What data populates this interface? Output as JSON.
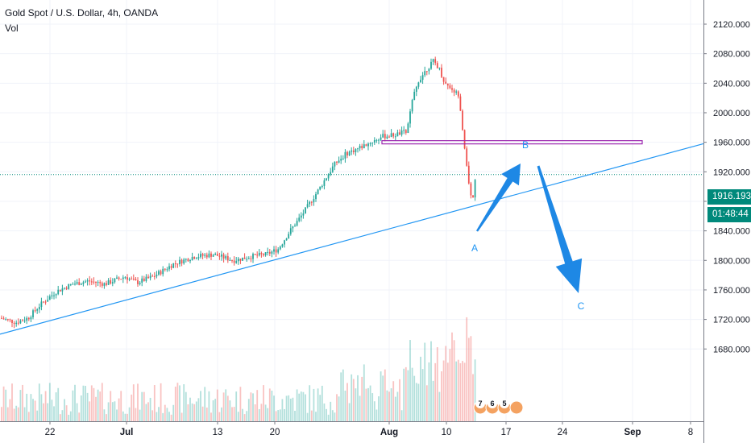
{
  "header": {
    "symbol": "Gold Spot / U.S. Dollar, 4h, OANDA",
    "indicator": "Vol"
  },
  "price_axis": {
    "ticks": [
      "2120.000",
      "2080.000",
      "2040.000",
      "2000.000",
      "1960.000",
      "1920.000",
      "1880.000",
      "1840.000",
      "1800.000",
      "1760.000",
      "1720.000",
      "1680.000"
    ],
    "current_price": "1916.193",
    "countdown": "01:48:44",
    "current_color": "#00897b"
  },
  "time_axis": {
    "ticks": [
      "22",
      "Jul",
      "13",
      "20",
      "Aug",
      "10",
      "17",
      "24",
      "Sep",
      "8"
    ]
  },
  "events": [
    "7",
    "6",
    "5"
  ],
  "annotations": {
    "wave_labels": [
      "A",
      "B",
      "C"
    ],
    "line_color": "#2196f3",
    "resistance_color": "#9c27b0"
  },
  "chart_data": {
    "type": "candlestick",
    "title": "Gold Spot / U.S. Dollar, 4h, OANDA",
    "ylim": [
      1660,
      2140
    ],
    "x_ticks": [
      "22",
      "Jul",
      "13",
      "20",
      "Aug",
      "10",
      "17",
      "24",
      "Sep",
      "8"
    ],
    "close_path": [
      [
        "Jun 16",
        1722
      ],
      [
        "Jun 18",
        1718
      ],
      [
        "Jun 22",
        1740
      ],
      [
        "Jun 24",
        1765
      ],
      [
        "Jun 26",
        1770
      ],
      [
        "Jun 29",
        1777
      ],
      [
        "Jul 01",
        1768
      ],
      [
        "Jul 03",
        1772
      ],
      [
        "Jul 06",
        1778
      ],
      [
        "Jul 08",
        1795
      ],
      [
        "Jul 10",
        1778
      ],
      [
        "Jul 13",
        1806
      ],
      [
        "Jul 15",
        1805
      ],
      [
        "Jul 17",
        1808
      ],
      [
        "Jul 20",
        1815
      ],
      [
        "Jul 21",
        1840
      ],
      [
        "Jul 22",
        1860
      ],
      [
        "Jul 24",
        1895
      ],
      [
        "Jul 27",
        1935
      ],
      [
        "Jul 28",
        1945
      ],
      [
        "Jul 29",
        1960
      ],
      [
        "Jul 31",
        1968
      ],
      [
        "Aug 03",
        1972
      ],
      [
        "Aug 04",
        2018
      ],
      [
        "Aug 05",
        2040
      ],
      [
        "Aug 06",
        2060
      ],
      [
        "Aug 07",
        2072
      ],
      [
        "Aug 08",
        2058
      ],
      [
        "Aug 10",
        2030
      ],
      [
        "Aug 11",
        1990
      ],
      [
        "Aug 11b",
        1915
      ],
      [
        "Aug 12",
        1875
      ],
      [
        "Aug 13",
        1916
      ]
    ],
    "current_price": 1916.193,
    "horizontal_level": 1960,
    "trendline": [
      [
        "Jun 16",
        1700
      ],
      [
        "Sep 10",
        1958
      ]
    ],
    "projection": [
      {
        "label": "A",
        "price": 1875
      },
      {
        "label": "B",
        "price": 1960
      },
      {
        "label": "C",
        "price": 1810
      }
    ],
    "volume_series": "Vol"
  }
}
